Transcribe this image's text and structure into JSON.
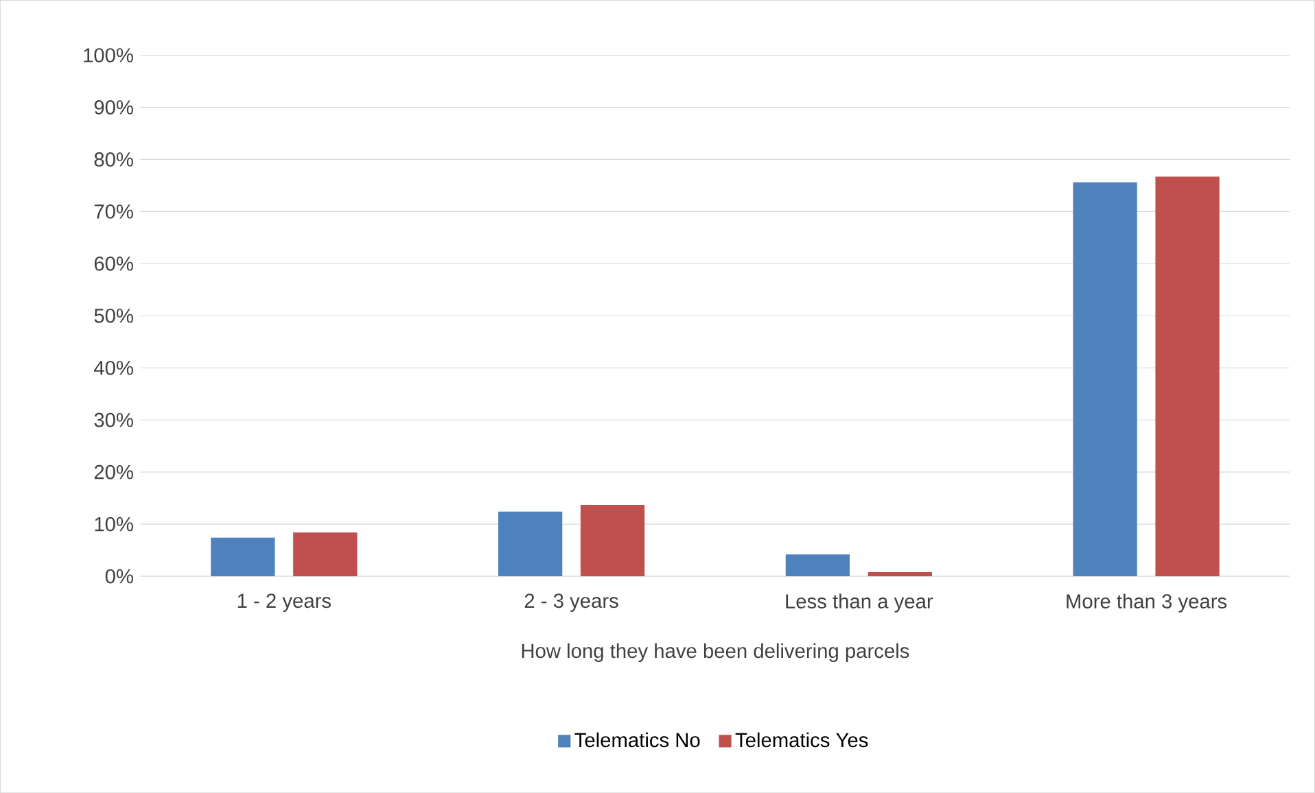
{
  "chart_data": {
    "type": "bar",
    "xlabel": "How long they have been delivering parcels",
    "categories": [
      "1 - 2 years",
      "2 - 3 years",
      "Less than a year",
      "More than 3 years"
    ],
    "series": [
      {
        "name": "Telematics No",
        "color": "#4f81bd",
        "values": [
          7.4,
          12.4,
          4.2,
          75.6
        ]
      },
      {
        "name": "Telematics Yes",
        "color": "#c0504d",
        "values": [
          8.4,
          13.7,
          0.8,
          76.7
        ]
      }
    ],
    "ylim": [
      0,
      100
    ],
    "yticks": [
      {
        "value": 0,
        "label": "0%"
      },
      {
        "value": 10,
        "label": "10%"
      },
      {
        "value": 20,
        "label": "20%"
      },
      {
        "value": 30,
        "label": "30%"
      },
      {
        "value": 40,
        "label": "40%"
      },
      {
        "value": 50,
        "label": "50%"
      },
      {
        "value": 60,
        "label": "60%"
      },
      {
        "value": 70,
        "label": "70%"
      },
      {
        "value": 80,
        "label": "80%"
      },
      {
        "value": 90,
        "label": "90%"
      },
      {
        "value": 100,
        "label": "100%"
      }
    ],
    "grid": "y",
    "legend": "bottom"
  }
}
